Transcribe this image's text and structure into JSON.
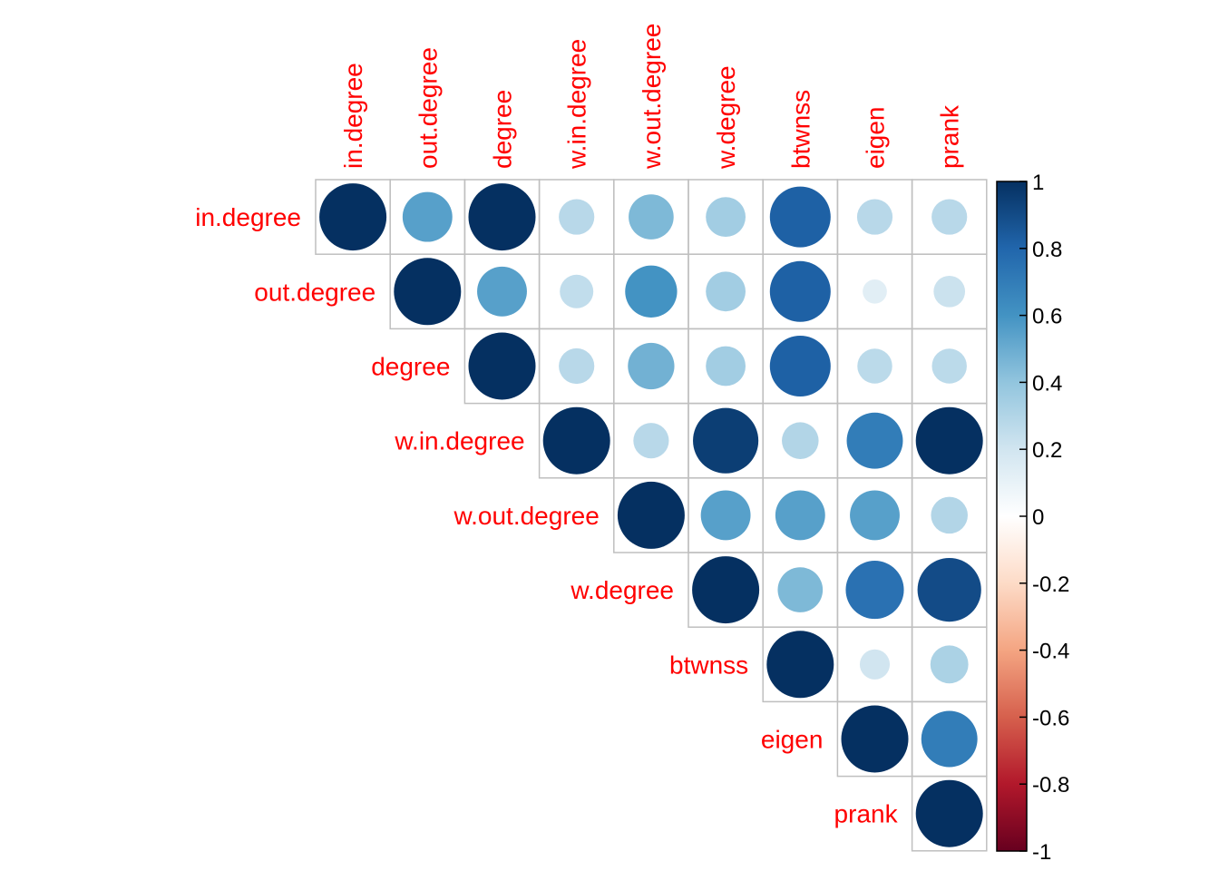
{
  "chart_data": {
    "type": "heatmap",
    "subtype": "correlation-matrix-circles",
    "triangle": "upper",
    "variables": [
      "in.degree",
      "out.degree",
      "degree",
      "w.in.degree",
      "w.out.degree",
      "w.degree",
      "btwnss",
      "eigen",
      "prank"
    ],
    "matrix": [
      [
        1.0,
        0.55,
        1.0,
        0.28,
        0.45,
        0.35,
        0.82,
        0.28,
        0.28
      ],
      [
        null,
        1.0,
        0.55,
        0.25,
        0.6,
        0.35,
        0.82,
        0.13,
        0.22
      ],
      [
        null,
        null,
        1.0,
        0.28,
        0.48,
        0.35,
        0.82,
        0.27,
        0.27
      ],
      [
        null,
        null,
        null,
        1.0,
        0.28,
        0.95,
        0.3,
        0.7,
        1.0
      ],
      [
        null,
        null,
        null,
        null,
        1.0,
        0.55,
        0.55,
        0.55,
        0.3
      ],
      [
        null,
        null,
        null,
        null,
        null,
        1.0,
        0.45,
        0.75,
        0.9
      ],
      [
        null,
        null,
        null,
        null,
        null,
        null,
        1.0,
        0.2,
        0.32
      ],
      [
        null,
        null,
        null,
        null,
        null,
        null,
        null,
        1.0,
        0.7
      ],
      [
        null,
        null,
        null,
        null,
        null,
        null,
        null,
        null,
        1.0
      ]
    ],
    "colorbar": {
      "range": [
        -1,
        1
      ],
      "ticks": [
        "1",
        "0.8",
        "0.6",
        "0.4",
        "0.2",
        "0",
        "-0.2",
        "-0.4",
        "-0.6",
        "-0.8",
        "-1"
      ],
      "colors": {
        "negative_strong": "#67001F",
        "negative_mid": "#D6604D",
        "zero": "#FFFFFF",
        "positive_mid": "#4393C3",
        "positive_strong": "#053061"
      }
    },
    "label_color": "#ff0000",
    "grid_color": "#bfbfbf"
  }
}
